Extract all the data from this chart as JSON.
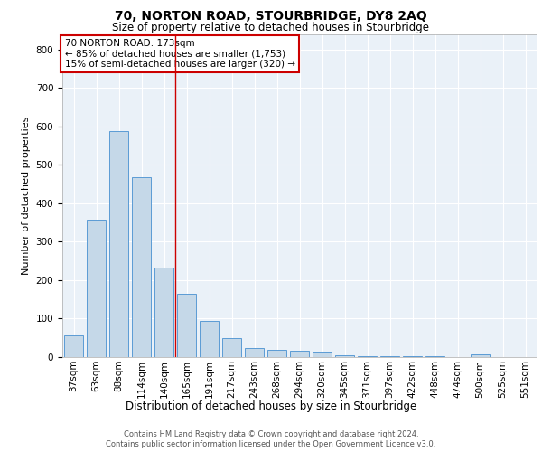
{
  "title": "70, NORTON ROAD, STOURBRIDGE, DY8 2AQ",
  "subtitle": "Size of property relative to detached houses in Stourbridge",
  "xlabel": "Distribution of detached houses by size in Stourbridge",
  "ylabel": "Number of detached properties",
  "categories": [
    "37sqm",
    "63sqm",
    "88sqm",
    "114sqm",
    "140sqm",
    "165sqm",
    "191sqm",
    "217sqm",
    "243sqm",
    "268sqm",
    "294sqm",
    "320sqm",
    "345sqm",
    "371sqm",
    "397sqm",
    "422sqm",
    "448sqm",
    "474sqm",
    "500sqm",
    "525sqm",
    "551sqm"
  ],
  "values": [
    57,
    358,
    588,
    468,
    232,
    165,
    95,
    50,
    23,
    18,
    17,
    13,
    5,
    2,
    2,
    2,
    2,
    0,
    7,
    0,
    0
  ],
  "bar_color": "#c5d8e8",
  "bar_edge_color": "#5b9bd5",
  "vline_x": 4.5,
  "vline_color": "#cc0000",
  "annotation_text": "70 NORTON ROAD: 173sqm\n← 85% of detached houses are smaller (1,753)\n15% of semi-detached houses are larger (320) →",
  "annotation_box_color": "#ffffff",
  "annotation_box_edge_color": "#cc0000",
  "ylim": [
    0,
    840
  ],
  "yticks": [
    0,
    100,
    200,
    300,
    400,
    500,
    600,
    700,
    800
  ],
  "plot_background_color": "#eaf1f8",
  "footer_line1": "Contains HM Land Registry data © Crown copyright and database right 2024.",
  "footer_line2": "Contains public sector information licensed under the Open Government Licence v3.0.",
  "title_fontsize": 10,
  "subtitle_fontsize": 8.5,
  "xlabel_fontsize": 8.5,
  "ylabel_fontsize": 8,
  "tick_fontsize": 7.5,
  "annotation_fontsize": 7.5,
  "footer_fontsize": 6
}
